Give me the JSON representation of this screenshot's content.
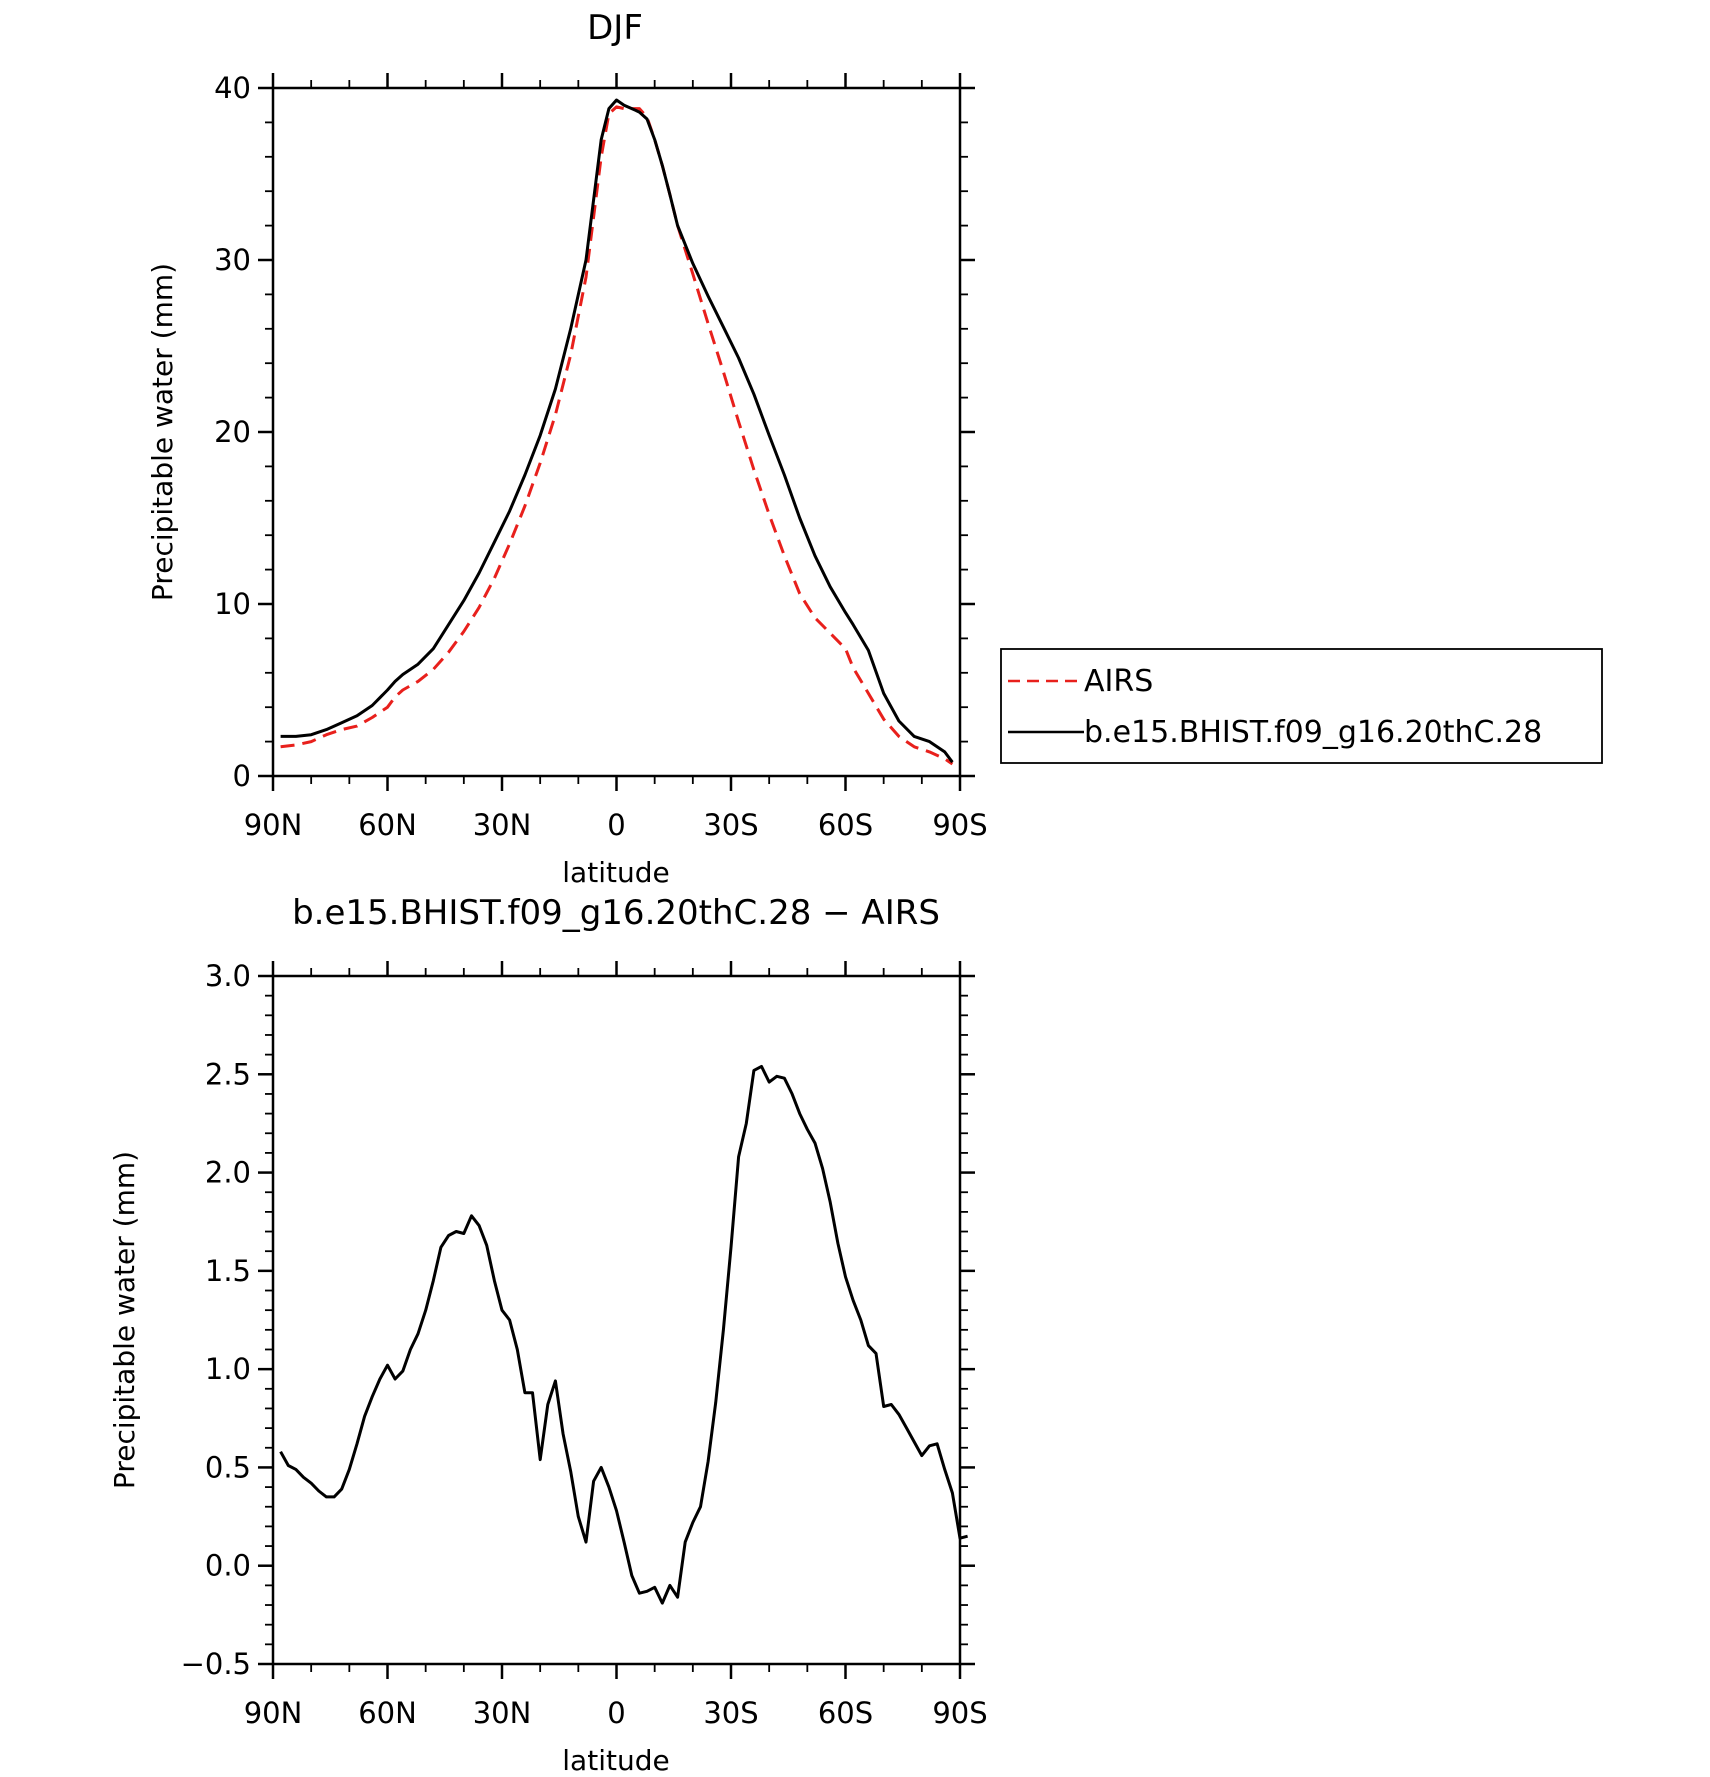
{
  "chart_data": [
    {
      "type": "line",
      "title": "DJF",
      "xlabel": "latitude",
      "ylabel": "Precipitable water (mm)",
      "xlim": [
        90,
        -90
      ],
      "ylim": [
        0,
        40
      ],
      "x_ticks": [
        90,
        60,
        30,
        0,
        -30,
        -60,
        -90
      ],
      "x_tick_labels": [
        "90N",
        "60N",
        "30N",
        "0",
        "30S",
        "60S",
        "90S"
      ],
      "y_ticks": [
        0,
        10,
        20,
        30,
        40
      ],
      "y_tick_labels": [
        "0",
        "10",
        "20",
        "30",
        "40"
      ],
      "legend_position": "right",
      "series": [
        {
          "name": "AIRS",
          "color": "#e8201c",
          "dash": "dashed",
          "points": [
            [
              88,
              1.7
            ],
            [
              84,
              1.8
            ],
            [
              80,
              2.0
            ],
            [
              76,
              2.4
            ],
            [
              72,
              2.7
            ],
            [
              68,
              2.9
            ],
            [
              64,
              3.4
            ],
            [
              60,
              4.0
            ],
            [
              58,
              4.6
            ],
            [
              56,
              5.0
            ],
            [
              52,
              5.5
            ],
            [
              48,
              6.2
            ],
            [
              44,
              7.2
            ],
            [
              40,
              8.4
            ],
            [
              36,
              9.8
            ],
            [
              32,
              11.5
            ],
            [
              28,
              13.5
            ],
            [
              24,
              15.7
            ],
            [
              20,
              18.2
            ],
            [
              16,
              21.0
            ],
            [
              12,
              24.5
            ],
            [
              8,
              29.0
            ],
            [
              6,
              32.5
            ],
            [
              4,
              36.0
            ],
            [
              2,
              38.5
            ],
            [
              0,
              38.9
            ],
            [
              -2,
              38.8
            ],
            [
              -4,
              38.8
            ],
            [
              -6,
              38.8
            ],
            [
              -8,
              38.3
            ],
            [
              -10,
              37.0
            ],
            [
              -12,
              35.5
            ],
            [
              -14,
              33.8
            ],
            [
              -16,
              32.0
            ],
            [
              -20,
              29.2
            ],
            [
              -24,
              26.3
            ],
            [
              -28,
              23.5
            ],
            [
              -32,
              20.6
            ],
            [
              -36,
              17.8
            ],
            [
              -40,
              15.2
            ],
            [
              -44,
              12.8
            ],
            [
              -48,
              10.6
            ],
            [
              -52,
              9.2
            ],
            [
              -56,
              8.3
            ],
            [
              -60,
              7.4
            ],
            [
              -62,
              6.3
            ],
            [
              -66,
              4.8
            ],
            [
              -70,
              3.3
            ],
            [
              -74,
              2.3
            ],
            [
              -78,
              1.7
            ],
            [
              -82,
              1.4
            ],
            [
              -86,
              1.0
            ],
            [
              -88,
              0.7
            ]
          ]
        },
        {
          "name": "b.e15.BHIST.f09_g16.20thC.28",
          "color": "#000000",
          "dash": "solid",
          "points": [
            [
              88,
              2.3
            ],
            [
              84,
              2.3
            ],
            [
              80,
              2.4
            ],
            [
              76,
              2.7
            ],
            [
              72,
              3.1
            ],
            [
              68,
              3.5
            ],
            [
              64,
              4.1
            ],
            [
              60,
              5.0
            ],
            [
              58,
              5.5
            ],
            [
              56,
              5.9
            ],
            [
              52,
              6.5
            ],
            [
              48,
              7.4
            ],
            [
              44,
              8.8
            ],
            [
              40,
              10.2
            ],
            [
              36,
              11.8
            ],
            [
              32,
              13.6
            ],
            [
              28,
              15.4
            ],
            [
              24,
              17.5
            ],
            [
              20,
              19.8
            ],
            [
              16,
              22.5
            ],
            [
              12,
              26.0
            ],
            [
              8,
              30.0
            ],
            [
              6,
              33.5
            ],
            [
              4,
              37.0
            ],
            [
              2,
              38.8
            ],
            [
              0,
              39.3
            ],
            [
              -2,
              39.0
            ],
            [
              -4,
              38.8
            ],
            [
              -6,
              38.6
            ],
            [
              -8,
              38.2
            ],
            [
              -10,
              37.0
            ],
            [
              -12,
              35.5
            ],
            [
              -14,
              33.8
            ],
            [
              -16,
              32.0
            ],
            [
              -20,
              29.8
            ],
            [
              -24,
              27.9
            ],
            [
              -28,
              26.1
            ],
            [
              -32,
              24.3
            ],
            [
              -36,
              22.2
            ],
            [
              -40,
              19.8
            ],
            [
              -44,
              17.5
            ],
            [
              -48,
              15.0
            ],
            [
              -52,
              12.8
            ],
            [
              -56,
              11.0
            ],
            [
              -60,
              9.5
            ],
            [
              -62,
              8.8
            ],
            [
              -66,
              7.3
            ],
            [
              -70,
              4.8
            ],
            [
              -74,
              3.2
            ],
            [
              -78,
              2.3
            ],
            [
              -82,
              2.0
            ],
            [
              -86,
              1.4
            ],
            [
              -88,
              0.8
            ]
          ]
        }
      ]
    },
    {
      "type": "line",
      "title": "b.e15.BHIST.f09_g16.20thC.28 − AIRS",
      "xlabel": "latitude",
      "ylabel": "Precipitable water (mm)",
      "xlim": [
        90,
        -90
      ],
      "ylim": [
        -0.5,
        3.0
      ],
      "x_ticks": [
        90,
        60,
        30,
        0,
        -30,
        -60,
        -90
      ],
      "x_tick_labels": [
        "90N",
        "60N",
        "30N",
        "0",
        "30S",
        "60S",
        "90S"
      ],
      "y_ticks": [
        -0.5,
        0.0,
        0.5,
        1.0,
        1.5,
        2.0,
        2.5,
        3.0
      ],
      "y_tick_labels": [
        "−0.5",
        "0.0",
        "0.5",
        "1.0",
        "1.5",
        "2.0",
        "2.5",
        "3.0"
      ],
      "series": [
        {
          "color": "#000000",
          "dash": "solid",
          "points": [
            [
              88,
              0.58
            ],
            [
              86,
              0.51
            ],
            [
              84,
              0.49
            ],
            [
              82,
              0.45
            ],
            [
              80,
              0.42
            ],
            [
              78,
              0.38
            ],
            [
              76,
              0.35
            ],
            [
              74,
              0.35
            ],
            [
              72,
              0.39
            ],
            [
              70,
              0.49
            ],
            [
              68,
              0.62
            ],
            [
              66,
              0.76
            ],
            [
              64,
              0.86
            ],
            [
              62,
              0.95
            ],
            [
              60,
              1.02
            ],
            [
              58,
              0.95
            ],
            [
              56,
              0.99
            ],
            [
              54,
              1.1
            ],
            [
              52,
              1.18
            ],
            [
              50,
              1.3
            ],
            [
              48,
              1.45
            ],
            [
              46,
              1.62
            ],
            [
              44,
              1.68
            ],
            [
              42,
              1.7
            ],
            [
              40,
              1.69
            ],
            [
              38,
              1.78
            ],
            [
              36,
              1.73
            ],
            [
              34,
              1.63
            ],
            [
              32,
              1.45
            ],
            [
              30,
              1.3
            ],
            [
              28,
              1.25
            ],
            [
              26,
              1.1
            ],
            [
              24,
              0.88
            ],
            [
              22,
              0.88
            ],
            [
              20,
              0.54
            ],
            [
              18,
              0.82
            ],
            [
              16,
              0.94
            ],
            [
              14,
              0.67
            ],
            [
              12,
              0.48
            ],
            [
              10,
              0.25
            ],
            [
              8,
              0.12
            ],
            [
              6,
              0.43
            ],
            [
              4,
              0.5
            ],
            [
              2,
              0.4
            ],
            [
              0,
              0.28
            ],
            [
              -2,
              0.12
            ],
            [
              -4,
              -0.05
            ],
            [
              -6,
              -0.14
            ],
            [
              -8,
              -0.13
            ],
            [
              -10,
              -0.11
            ],
            [
              -12,
              -0.19
            ],
            [
              -14,
              -0.1
            ],
            [
              -16,
              -0.16
            ],
            [
              -18,
              0.12
            ],
            [
              -20,
              0.22
            ],
            [
              -22,
              0.3
            ],
            [
              -24,
              0.53
            ],
            [
              -26,
              0.83
            ],
            [
              -28,
              1.2
            ],
            [
              -30,
              1.62
            ],
            [
              -32,
              2.08
            ],
            [
              -34,
              2.25
            ],
            [
              -36,
              2.52
            ],
            [
              -38,
              2.54
            ],
            [
              -40,
              2.46
            ],
            [
              -42,
              2.49
            ],
            [
              -44,
              2.48
            ],
            [
              -46,
              2.4
            ],
            [
              -48,
              2.3
            ],
            [
              -50,
              2.22
            ],
            [
              -52,
              2.15
            ],
            [
              -54,
              2.02
            ],
            [
              -56,
              1.85
            ],
            [
              -58,
              1.64
            ],
            [
              -60,
              1.47
            ],
            [
              -62,
              1.35
            ],
            [
              -64,
              1.25
            ],
            [
              -66,
              1.12
            ],
            [
              -68,
              1.08
            ],
            [
              -70,
              0.81
            ],
            [
              -72,
              0.82
            ],
            [
              -74,
              0.77
            ],
            [
              -76,
              0.7
            ],
            [
              -78,
              0.63
            ],
            [
              -80,
              0.56
            ],
            [
              -82,
              0.61
            ],
            [
              -84,
              0.62
            ],
            [
              -86,
              0.49
            ],
            [
              -88,
              0.37
            ],
            [
              -90,
              0.14
            ],
            [
              -92,
              0.15
            ]
          ]
        }
      ]
    }
  ]
}
